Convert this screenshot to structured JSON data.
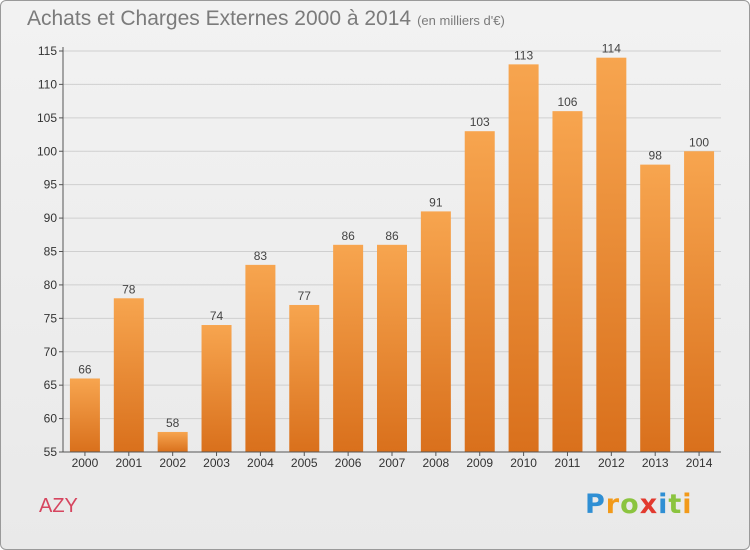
{
  "title": {
    "main": "Achats et Charges Externes 2000 à 2014",
    "unit": "(en milliers d'€)"
  },
  "commune": "AZY",
  "logo": {
    "text": "Proxiti",
    "letters": [
      {
        "ch": "P",
        "color": "#2f8fd4"
      },
      {
        "ch": "r",
        "color": "#f29a1a"
      },
      {
        "ch": "o",
        "color": "#8bc43f"
      },
      {
        "ch": "x",
        "color": "#e23a2f"
      },
      {
        "ch": "i",
        "color": "#2f8fd4"
      },
      {
        "ch": "t",
        "color": "#8bc43f"
      },
      {
        "ch": "i",
        "color": "#f29a1a"
      }
    ]
  },
  "colors": {
    "bar_top": "#f7a54f",
    "bar_bottom": "#d9701c",
    "grid": "#cfcfcf",
    "axis": "#555555"
  },
  "chart_data": {
    "type": "bar",
    "title": "Achats et Charges Externes 2000 à 2014",
    "categories": [
      "2000",
      "2001",
      "2002",
      "2003",
      "2004",
      "2005",
      "2006",
      "2007",
      "2008",
      "2009",
      "2010",
      "2011",
      "2012",
      "2013",
      "2014"
    ],
    "values": [
      66,
      78,
      58,
      74,
      83,
      77,
      86,
      86,
      91,
      103,
      113,
      106,
      114,
      98,
      100
    ],
    "ylim": [
      55,
      115
    ],
    "yticks": [
      55,
      60,
      65,
      70,
      75,
      80,
      85,
      90,
      95,
      100,
      105,
      110,
      115
    ],
    "grid": true,
    "data_labels": true
  }
}
